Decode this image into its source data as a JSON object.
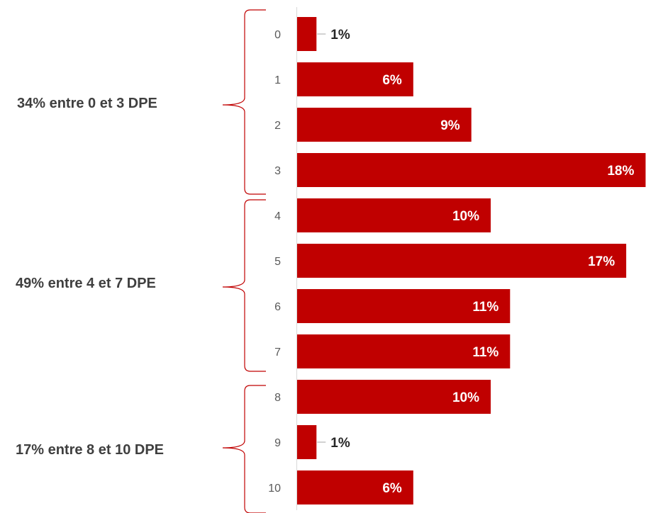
{
  "chart_data": {
    "type": "bar",
    "orientation": "horizontal",
    "categories": [
      "0",
      "1",
      "2",
      "3",
      "4",
      "5",
      "6",
      "7",
      "8",
      "9",
      "10"
    ],
    "values": [
      1,
      6,
      9,
      18,
      10,
      17,
      11,
      11,
      10,
      1,
      6
    ],
    "value_labels": [
      "1%",
      "6%",
      "9%",
      "18%",
      "10%",
      "17%",
      "11%",
      "11%",
      "10%",
      "1%",
      "6%"
    ],
    "unit": "%",
    "title": "",
    "xlabel": "",
    "ylabel": "",
    "grid": false,
    "colors": {
      "bar": "#c00000",
      "bracket": "#c00000",
      "axis": "#d9d9d9"
    },
    "groups": [
      {
        "label": "34% entre 0 et 3 DPE",
        "from": "0",
        "to": "3"
      },
      {
        "label": "49% entre 4 et 7 DPE",
        "from": "4",
        "to": "7"
      },
      {
        "label": "17% entre 8 et 10 DPE",
        "from": "8",
        "to": "10"
      }
    ]
  }
}
